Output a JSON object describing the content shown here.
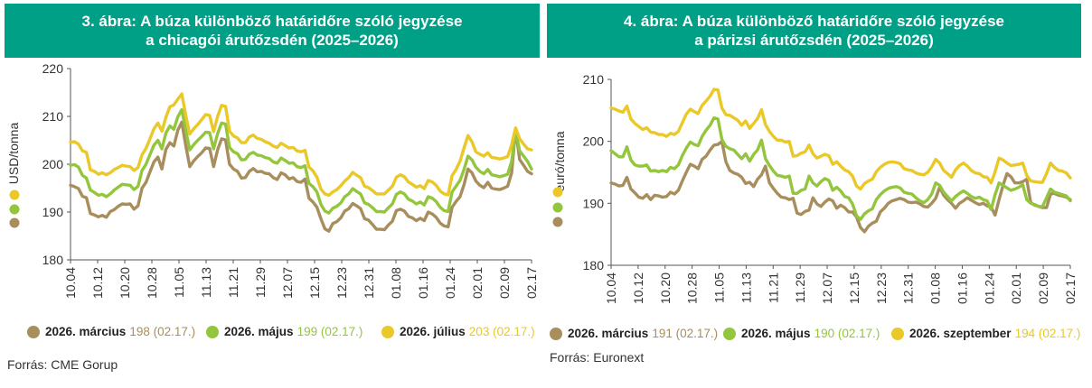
{
  "colors": {
    "header_bg": "#00a087",
    "march": "#a88e5c",
    "may": "#93c63c",
    "july": "#e9c827",
    "axis": "#555555",
    "grid": "#dddddd"
  },
  "chart_data": [
    {
      "type": "line",
      "title_line1": "3. ábra: A búza különböző határidőre szóló jegyzése",
      "title_line2": "a chicagói árutőzsdén (2025–2026)",
      "ylabel": "USD/tonna",
      "ylim": [
        180,
        220
      ],
      "yticks": [
        "180",
        "190",
        "200",
        "210",
        "220"
      ],
      "xticks": [
        "10.04",
        "10.12",
        "10.20",
        "10.28",
        "11.05",
        "11.13",
        "11.21",
        "11.29",
        "12.07",
        "12.15",
        "12.23",
        "12.31",
        "01.08",
        "01.16",
        "01.24",
        "02.01",
        "02.09",
        "02.17"
      ],
      "grid": false,
      "series": [
        {
          "name": "2026. március",
          "last_value": "198 (02.17.)",
          "values": [
            195.6,
            195.3,
            194.9,
            193.3,
            193.0,
            189.7,
            189.4,
            189.0,
            189.3,
            188.9,
            190.1,
            190.5,
            191.2,
            191.7,
            191.6,
            191.7,
            190.6,
            191.3,
            195.0,
            196.2,
            198.4,
            200.5,
            201.5,
            199.0,
            203.1,
            204.5,
            203.8,
            207.1,
            208.8,
            203.9,
            199.5,
            200.7,
            201.6,
            202.4,
            203.4,
            203.3,
            199.5,
            203.0,
            205.3,
            205.1,
            200.0,
            199.0,
            198.5,
            197.1,
            197.2,
            198.5,
            199.1,
            198.4,
            198.5,
            198.1,
            198.0,
            197.2,
            196.8,
            198.2,
            197.8,
            196.9,
            197.2,
            196.4,
            196.2,
            196.9,
            192.9,
            192.1,
            191.0,
            188.6,
            186.5,
            186.0,
            187.6,
            188.0,
            188.8,
            190.2,
            190.7,
            191.8,
            191.3,
            190.7,
            188.6,
            188.3,
            187.4,
            186.4,
            186.4,
            186.3,
            187.3,
            188.1,
            190.3,
            190.6,
            190.2,
            189.1,
            188.8,
            188.2,
            188.7,
            188.2,
            190.0,
            189.6,
            188.9,
            187.7,
            187.1,
            186.9,
            191.0,
            192.2,
            193.2,
            195.7,
            199.0,
            198.2,
            196.5,
            195.6,
            195.1,
            196.2,
            195.0,
            194.8,
            194.7,
            195.0,
            195.4,
            198.2,
            207.4,
            201.0,
            199.8,
            198.5,
            198.0
          ]
        },
        {
          "name": "2026. május",
          "last_value": "199 (02.17.)",
          "values": [
            199.8,
            199.9,
            199.4,
            197.7,
            197.1,
            194.6,
            194.1,
            193.5,
            193.7,
            193.2,
            193.8,
            194.6,
            195.2,
            195.8,
            195.7,
            195.6,
            194.7,
            195.4,
            198.7,
            200.0,
            202.0,
            204.0,
            205.0,
            203.2,
            206.5,
            208.0,
            207.3,
            209.9,
            211.4,
            207.1,
            203.0,
            204.1,
            205.0,
            205.8,
            206.7,
            206.6,
            203.2,
            206.4,
            208.6,
            208.4,
            203.5,
            202.6,
            202.2,
            200.9,
            201.0,
            202.1,
            202.5,
            201.9,
            201.8,
            201.4,
            201.2,
            200.5,
            200.2,
            201.3,
            200.8,
            200.2,
            200.3,
            199.5,
            199.3,
            199.7,
            196.0,
            195.3,
            194.2,
            191.6,
            190.2,
            189.8,
            190.8,
            191.2,
            191.9,
            193.2,
            193.8,
            194.9,
            194.3,
            193.8,
            191.9,
            191.6,
            190.9,
            190.1,
            190.1,
            190.0,
            190.9,
            191.7,
            193.7,
            194.2,
            193.8,
            192.7,
            192.3,
            191.7,
            192.1,
            191.5,
            193.2,
            192.9,
            192.2,
            191.0,
            190.3,
            190.1,
            194.2,
            195.4,
            196.6,
            198.9,
            201.7,
            200.9,
            199.4,
            198.5,
            198.0,
            198.9,
            197.8,
            197.6,
            197.4,
            197.6,
            197.9,
            200.6,
            207.0,
            202.8,
            201.7,
            200.6,
            199.0
          ]
        },
        {
          "name": "2026. július",
          "last_value": "203 (02.17.)",
          "values": [
            204.6,
            204.7,
            204.2,
            202.8,
            202.5,
            198.8,
            198.5,
            197.9,
            198.2,
            197.8,
            198.2,
            198.9,
            199.3,
            199.8,
            199.6,
            199.5,
            198.7,
            199.3,
            202.0,
            203.3,
            205.3,
            207.4,
            208.6,
            206.9,
            209.8,
            212.0,
            212.4,
            213.6,
            214.7,
            210.2,
            206.3,
            207.4,
            208.3,
            209.3,
            210.4,
            210.2,
            206.8,
            210.0,
            212.3,
            212.1,
            206.9,
            205.9,
            205.5,
            204.5,
            204.5,
            205.7,
            206.1,
            205.4,
            205.2,
            204.7,
            204.4,
            203.8,
            203.5,
            204.4,
            203.9,
            203.4,
            203.5,
            202.8,
            202.6,
            202.9,
            199.4,
            198.6,
            197.3,
            194.8,
            193.8,
            193.5,
            194.2,
            194.7,
            195.5,
            196.5,
            197.2,
            198.3,
            197.7,
            197.2,
            195.4,
            195.1,
            194.5,
            193.8,
            193.8,
            193.8,
            194.6,
            195.4,
            197.3,
            197.8,
            197.4,
            196.3,
            195.8,
            195.2,
            195.5,
            194.9,
            196.6,
            196.3,
            195.6,
            194.4,
            193.8,
            193.6,
            197.6,
            198.9,
            200.6,
            203.4,
            206.0,
            204.7,
            202.6,
            202.1,
            201.7,
            202.4,
            201.4,
            201.3,
            201.1,
            201.3,
            201.6,
            204.1,
            207.6,
            205.3,
            204.2,
            203.2,
            203.0
          ]
        }
      ]
    },
    {
      "type": "line",
      "title_line1": "4. ábra: A búza különböző határidőre szóló jegyzése",
      "title_line2": "a párizsi árutőzsdén (2025–2026)",
      "ylabel": "euró/tonna",
      "ylim": [
        180,
        210
      ],
      "yticks": [
        "180",
        "190",
        "200",
        "210"
      ],
      "xticks": [
        "10.04",
        "10.12",
        "10.20",
        "10.28",
        "11.05",
        "11.13",
        "11.21",
        "11.29",
        "12.07",
        "12.15",
        "12.23",
        "12.31",
        "01.08",
        "01.16",
        "01.24",
        "02.01",
        "02.09",
        "02.17"
      ],
      "grid": false,
      "series": [
        {
          "name": "2026. március",
          "last_value": "191 (02.17.)",
          "values": [
            193.3,
            193.1,
            192.8,
            192.9,
            194.2,
            192.3,
            191.7,
            191.0,
            190.8,
            191.4,
            190.6,
            191.3,
            191.2,
            191.0,
            191.1,
            191.8,
            191.5,
            192.1,
            193.6,
            195.0,
            196.3,
            196.0,
            195.6,
            197.1,
            197.6,
            198.6,
            199.4,
            199.5,
            200.0,
            196.7,
            195.3,
            194.9,
            194.7,
            194.2,
            193.2,
            193.4,
            192.7,
            193.9,
            194.6,
            196.0,
            193.3,
            192.4,
            191.6,
            191.0,
            190.9,
            190.6,
            190.8,
            188.4,
            188.2,
            188.7,
            188.9,
            190.9,
            189.9,
            189.5,
            190.2,
            190.7,
            190.4,
            189.2,
            189.7,
            189.3,
            188.6,
            188.6,
            187.8,
            186.1,
            185.4,
            186.3,
            186.8,
            187.1,
            188.6,
            189.2,
            190.0,
            190.4,
            190.6,
            190.8,
            190.6,
            190.2,
            190.1,
            190.2,
            189.9,
            189.5,
            189.4,
            190.0,
            190.8,
            192.6,
            191.3,
            190.6,
            190.0,
            189.2,
            190.0,
            190.4,
            190.9,
            190.5,
            190.1,
            189.8,
            190.0,
            189.6,
            189.4,
            188.1,
            190.6,
            192.9,
            194.8,
            194.3,
            193.3,
            193.3,
            193.5,
            193.9,
            190.1,
            189.7,
            189.5,
            189.3,
            189.3,
            191.5,
            191.6,
            191.3,
            191.2,
            191.0,
            190.6
          ]
        },
        {
          "name": "2026. május",
          "last_value": "190 (02.17.)",
          "values": [
            198.5,
            198.0,
            197.5,
            197.5,
            199.1,
            197.0,
            196.2,
            196.0,
            196.0,
            196.2,
            195.2,
            195.3,
            195.1,
            195.3,
            195.1,
            195.8,
            195.6,
            196.2,
            197.7,
            198.9,
            199.9,
            199.5,
            199.3,
            200.8,
            201.8,
            202.6,
            203.8,
            203.6,
            200.3,
            199.2,
            198.8,
            198.6,
            197.9,
            197.2,
            198.0,
            196.8,
            197.9,
            198.6,
            200.2,
            197.2,
            196.1,
            195.2,
            194.5,
            194.4,
            194.2,
            194.4,
            191.6,
            191.6,
            192.1,
            192.3,
            194.4,
            193.3,
            192.8,
            193.5,
            194.0,
            193.7,
            192.1,
            192.6,
            192.0,
            191.1,
            190.9,
            189.9,
            188.0,
            187.4,
            188.3,
            188.8,
            189.1,
            190.6,
            191.4,
            192.0,
            192.4,
            192.6,
            192.7,
            192.5,
            191.8,
            191.6,
            191.5,
            190.9,
            190.4,
            190.1,
            190.6,
            191.5,
            193.3,
            192.9,
            191.8,
            191.1,
            190.4,
            191.1,
            191.6,
            192.0,
            191.6,
            191.1,
            190.8,
            191.0,
            190.6,
            190.4,
            189.0,
            191.4,
            193.3,
            192.9,
            192.5,
            192.1,
            192.3,
            192.6,
            193.0,
            190.6,
            190.0,
            189.8,
            189.5,
            189.5,
            190.9,
            192.3,
            191.8,
            191.6,
            191.4,
            191.2,
            190.4
          ]
        },
        {
          "name": "2026. szeptember",
          "last_value": "194 (02.17.)",
          "values": [
            205.4,
            205.2,
            204.9,
            204.7,
            205.7,
            203.6,
            202.9,
            202.4,
            201.9,
            202.2,
            201.5,
            201.4,
            201.1,
            201.1,
            200.8,
            201.3,
            201.1,
            201.6,
            203.0,
            204.4,
            205.2,
            204.8,
            204.5,
            205.8,
            206.5,
            207.3,
            208.4,
            208.3,
            205.4,
            204.3,
            204.2,
            203.8,
            203.4,
            202.6,
            203.3,
            202.1,
            202.9,
            203.7,
            205.1,
            202.7,
            201.6,
            200.8,
            200.2,
            200.2,
            199.9,
            200.0,
            197.6,
            197.7,
            198.1,
            198.3,
            199.4,
            198.0,
            197.3,
            197.6,
            197.9,
            197.7,
            196.3,
            196.7,
            196.0,
            195.4,
            195.1,
            194.4,
            192.8,
            192.3,
            193.2,
            193.6,
            193.9,
            195.1,
            195.8,
            196.3,
            196.6,
            196.7,
            196.6,
            196.4,
            195.6,
            195.4,
            195.3,
            194.9,
            194.7,
            194.6,
            195.0,
            195.9,
            197.1,
            196.5,
            195.3,
            194.8,
            194.2,
            195.4,
            196.1,
            196.5,
            196.0,
            195.3,
            194.9,
            194.8,
            194.3,
            194.2,
            193.3,
            195.1,
            197.3,
            197.0,
            196.5,
            196.1,
            196.2,
            196.3,
            196.5,
            194.5,
            193.6,
            193.5,
            193.4,
            193.4,
            194.8,
            196.5,
            195.8,
            195.3,
            195.2,
            194.9,
            194.1
          ]
        }
      ]
    }
  ],
  "sources": [
    "Forrás: CME Gorup",
    "Forrás: Euronext"
  ]
}
